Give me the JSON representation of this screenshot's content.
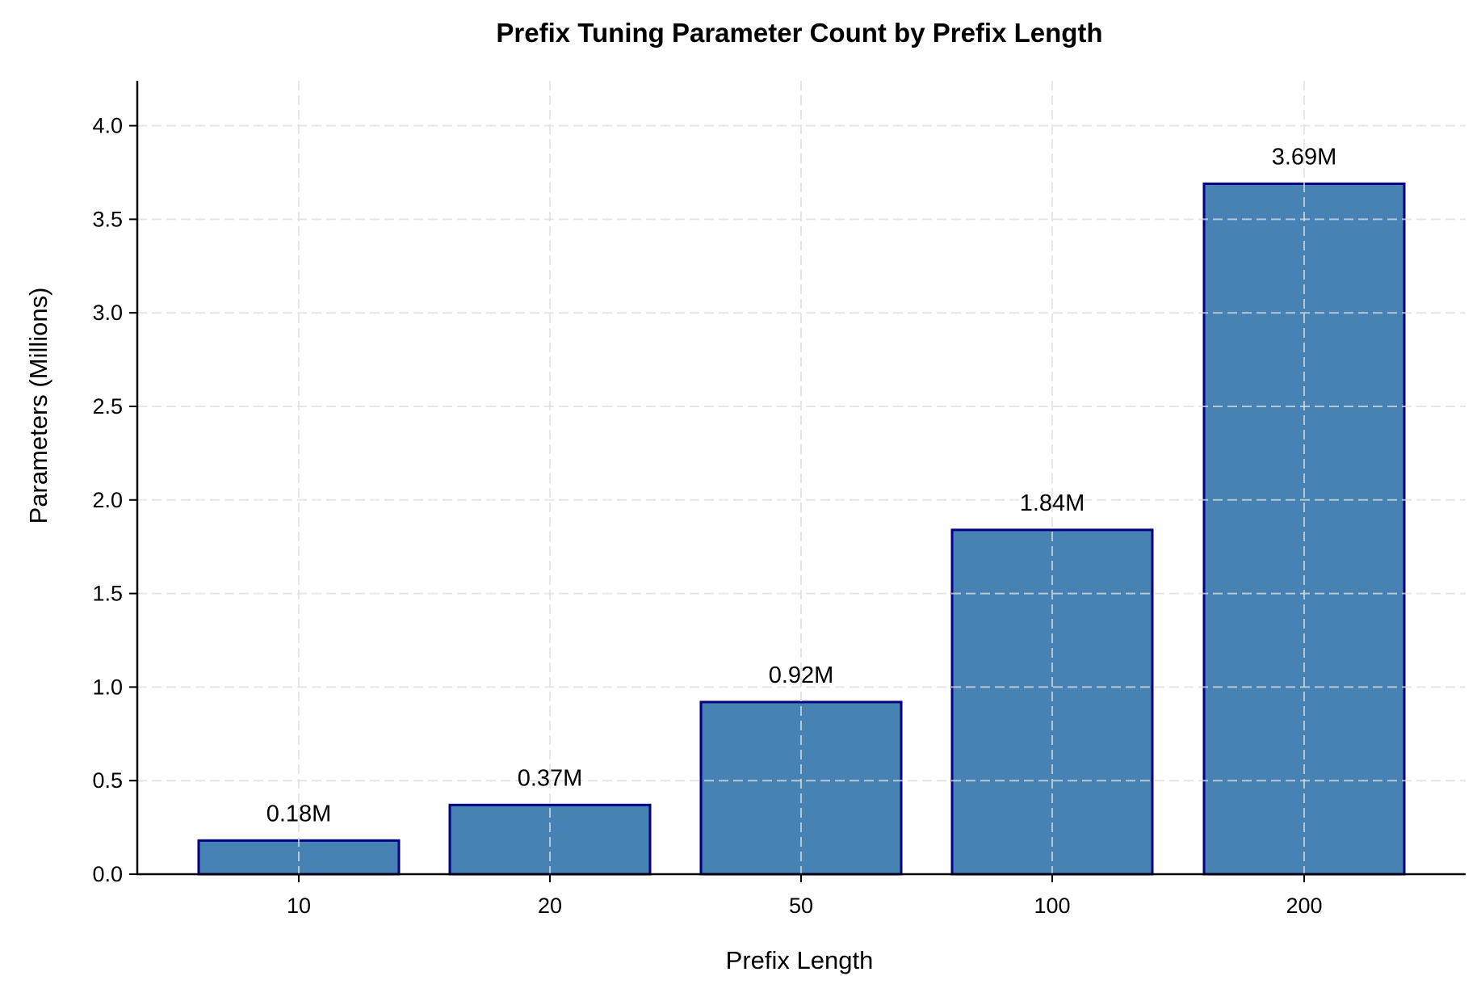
{
  "chart_data": {
    "type": "bar",
    "title": "Prefix Tuning Parameter Count by Prefix Length",
    "xlabel": "Prefix Length",
    "ylabel": "Parameters (Millions)",
    "categories": [
      "10",
      "20",
      "50",
      "100",
      "200"
    ],
    "values": [
      0.18,
      0.37,
      0.92,
      1.84,
      3.69
    ],
    "bar_labels": [
      "0.18M",
      "0.37M",
      "0.92M",
      "1.84M",
      "3.69M"
    ],
    "ylim": [
      0,
      4.24
    ],
    "yticks": [
      0.0,
      0.5,
      1.0,
      1.5,
      2.0,
      2.5,
      3.0,
      3.5,
      4.0
    ],
    "ytick_labels": [
      "0.0",
      "0.5",
      "1.0",
      "1.5",
      "2.0",
      "2.5",
      "3.0",
      "3.5",
      "4.0"
    ],
    "grid": true,
    "legend": null,
    "colors": {
      "bar_fill": "#4682b4",
      "bar_edge": "#000080",
      "grid": "#dddddd",
      "axis": "#000000"
    }
  }
}
